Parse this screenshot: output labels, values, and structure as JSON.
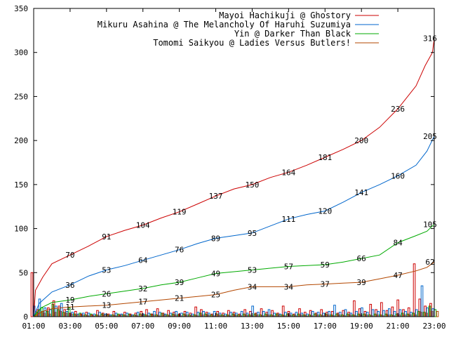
{
  "chart_data": {
    "type": "line",
    "title": "",
    "xlabel": "",
    "ylabel": "",
    "ylim": [
      0,
      350
    ],
    "xlim_hours": [
      1,
      23
    ],
    "yticks": [
      0,
      50,
      100,
      150,
      200,
      250,
      300,
      350
    ],
    "xtick_labels": [
      "01:00",
      "03:00",
      "05:00",
      "07:00",
      "09:00",
      "11:00",
      "13:00",
      "15:00",
      "17:00",
      "19:00",
      "21:00",
      "23:00"
    ],
    "legend_position": "top-right",
    "series": [
      {
        "name": "Mayoi Hachikuji @ Ghostory",
        "color": "#cc0000",
        "points": [
          [
            1,
            0
          ],
          [
            1.1,
            30
          ],
          [
            1.5,
            45
          ],
          [
            2,
            60
          ],
          [
            3,
            70
          ],
          [
            4,
            80
          ],
          [
            5,
            91
          ],
          [
            6,
            98
          ],
          [
            7,
            104
          ],
          [
            8,
            112
          ],
          [
            9,
            119
          ],
          [
            10,
            128
          ],
          [
            11,
            137
          ],
          [
            12,
            145
          ],
          [
            13,
            150
          ],
          [
            14,
            158
          ],
          [
            15,
            164
          ],
          [
            16,
            172
          ],
          [
            17,
            181
          ],
          [
            18,
            190
          ],
          [
            19,
            200
          ],
          [
            20,
            215
          ],
          [
            21,
            236
          ],
          [
            22,
            262
          ],
          [
            22.5,
            285
          ],
          [
            22.9,
            300
          ],
          [
            23,
            316
          ]
        ],
        "labels": [
          [
            3,
            70,
            "70"
          ],
          [
            5,
            91,
            "91"
          ],
          [
            7,
            104,
            "104"
          ],
          [
            9,
            119,
            "119"
          ],
          [
            11,
            137,
            "137"
          ],
          [
            13,
            150,
            "150"
          ],
          [
            15,
            164,
            "164"
          ],
          [
            17,
            181,
            "181"
          ],
          [
            19,
            200,
            "200"
          ],
          [
            21,
            236,
            "236"
          ],
          [
            23,
            316,
            "316"
          ]
        ]
      },
      {
        "name": "Mikuru Asahina @ The Melancholy Of Haruhi Suzumiya",
        "color": "#0066cc",
        "points": [
          [
            1,
            0
          ],
          [
            1.3,
            15
          ],
          [
            2,
            28
          ],
          [
            3,
            36
          ],
          [
            4,
            46
          ],
          [
            5,
            53
          ],
          [
            6,
            58
          ],
          [
            7,
            64
          ],
          [
            8,
            70
          ],
          [
            9,
            76
          ],
          [
            10,
            83
          ],
          [
            11,
            89
          ],
          [
            12,
            92
          ],
          [
            13,
            95
          ],
          [
            14,
            103
          ],
          [
            15,
            111
          ],
          [
            16,
            116
          ],
          [
            17,
            120
          ],
          [
            18,
            130
          ],
          [
            19,
            141
          ],
          [
            20,
            150
          ],
          [
            21,
            160
          ],
          [
            22,
            172
          ],
          [
            22.6,
            188
          ],
          [
            23,
            205
          ]
        ],
        "labels": [
          [
            3,
            36,
            "36"
          ],
          [
            5,
            53,
            "53"
          ],
          [
            7,
            64,
            "64"
          ],
          [
            9,
            76,
            "76"
          ],
          [
            11,
            89,
            "89"
          ],
          [
            13,
            95,
            "95"
          ],
          [
            15,
            111,
            "111"
          ],
          [
            17,
            120,
            "120"
          ],
          [
            19,
            141,
            "141"
          ],
          [
            21,
            160,
            "160"
          ],
          [
            23,
            205,
            "205"
          ]
        ]
      },
      {
        "name": "Yin @ Darker Than Black",
        "color": "#00aa00",
        "points": [
          [
            1,
            0
          ],
          [
            1.4,
            10
          ],
          [
            2,
            16
          ],
          [
            3,
            19
          ],
          [
            4,
            23
          ],
          [
            5,
            26
          ],
          [
            6,
            29
          ],
          [
            7,
            32
          ],
          [
            8,
            36
          ],
          [
            9,
            39
          ],
          [
            10,
            44
          ],
          [
            11,
            49
          ],
          [
            12,
            51
          ],
          [
            13,
            53
          ],
          [
            14,
            55
          ],
          [
            15,
            57
          ],
          [
            16,
            58
          ],
          [
            17,
            59
          ],
          [
            18,
            62
          ],
          [
            19,
            66
          ],
          [
            20,
            70
          ],
          [
            21,
            84
          ],
          [
            22,
            92
          ],
          [
            22.6,
            97
          ],
          [
            23,
            105
          ]
        ],
        "labels": [
          [
            3,
            19,
            "19"
          ],
          [
            5,
            26,
            "26"
          ],
          [
            7,
            32,
            "32"
          ],
          [
            9,
            39,
            "39"
          ],
          [
            11,
            49,
            "49"
          ],
          [
            13,
            53,
            "53"
          ],
          [
            15,
            57,
            "57"
          ],
          [
            17,
            59,
            "59"
          ],
          [
            19,
            66,
            "66"
          ],
          [
            21,
            84,
            "84"
          ],
          [
            23,
            105,
            "105"
          ]
        ]
      },
      {
        "name": "Tomomi Saikyou @ Ladies Versus Butlers!",
        "color": "#b34700",
        "points": [
          [
            1,
            0
          ],
          [
            1.5,
            6
          ],
          [
            2,
            9
          ],
          [
            3,
            11
          ],
          [
            4,
            12
          ],
          [
            5,
            13
          ],
          [
            6,
            15
          ],
          [
            7,
            17
          ],
          [
            8,
            19
          ],
          [
            9,
            21
          ],
          [
            10,
            23
          ],
          [
            11,
            25
          ],
          [
            12,
            30
          ],
          [
            13,
            34
          ],
          [
            14,
            34
          ],
          [
            15,
            34
          ],
          [
            16,
            36
          ],
          [
            17,
            37
          ],
          [
            18,
            38
          ],
          [
            19,
            39
          ],
          [
            20,
            43
          ],
          [
            21,
            47
          ],
          [
            22,
            52
          ],
          [
            22.6,
            56
          ],
          [
            23,
            62
          ]
        ],
        "labels": [
          [
            3,
            11,
            "11"
          ],
          [
            5,
            13,
            "13"
          ],
          [
            7,
            17,
            "17"
          ],
          [
            9,
            21,
            "21"
          ],
          [
            11,
            25,
            "25"
          ],
          [
            13,
            34,
            "34"
          ],
          [
            15,
            34,
            "34"
          ],
          [
            17,
            37,
            "37"
          ],
          [
            19,
            39,
            "39"
          ],
          [
            21,
            47,
            "47"
          ],
          [
            23,
            62,
            "62"
          ]
        ]
      }
    ],
    "bars": [
      {
        "x": 1.1,
        "values": [
          50,
          12,
          5,
          8
        ]
      },
      {
        "x": 1.4,
        "values": [
          8,
          20,
          10,
          4
        ]
      },
      {
        "x": 1.7,
        "values": [
          6,
          10,
          6,
          3
        ]
      },
      {
        "x": 2.0,
        "values": [
          10,
          8,
          14,
          5
        ]
      },
      {
        "x": 2.3,
        "values": [
          18,
          12,
          8,
          6
        ]
      },
      {
        "x": 2.6,
        "values": [
          12,
          15,
          5,
          4
        ]
      },
      {
        "x": 2.9,
        "values": [
          8,
          6,
          10,
          3
        ]
      },
      {
        "x": 3.2,
        "values": [
          4,
          5,
          3,
          2
        ]
      },
      {
        "x": 3.5,
        "values": [
          6,
          3,
          4,
          2
        ]
      },
      {
        "x": 3.8,
        "values": [
          3,
          4,
          2,
          1
        ]
      },
      {
        "x": 4.1,
        "values": [
          5,
          4,
          3,
          1
        ]
      },
      {
        "x": 4.4,
        "values": [
          2,
          3,
          2,
          1
        ]
      },
      {
        "x": 4.7,
        "values": [
          7,
          5,
          3,
          2
        ]
      },
      {
        "x": 5.0,
        "values": [
          4,
          3,
          2,
          1
        ]
      },
      {
        "x": 5.3,
        "values": [
          3,
          2,
          2,
          1
        ]
      },
      {
        "x": 5.6,
        "values": [
          6,
          4,
          3,
          2
        ]
      },
      {
        "x": 5.9,
        "values": [
          2,
          3,
          2,
          1
        ]
      },
      {
        "x": 6.2,
        "values": [
          5,
          4,
          3,
          2
        ]
      },
      {
        "x": 6.5,
        "values": [
          3,
          2,
          2,
          1
        ]
      },
      {
        "x": 6.8,
        "values": [
          4,
          5,
          3,
          2
        ]
      },
      {
        "x": 7.1,
        "values": [
          6,
          3,
          2,
          1
        ]
      },
      {
        "x": 7.4,
        "values": [
          8,
          4,
          3,
          2
        ]
      },
      {
        "x": 7.7,
        "values": [
          3,
          6,
          2,
          1
        ]
      },
      {
        "x": 8.0,
        "values": [
          9,
          5,
          4,
          2
        ]
      },
      {
        "x": 8.3,
        "values": [
          4,
          3,
          2,
          1
        ]
      },
      {
        "x": 8.6,
        "values": [
          7,
          4,
          3,
          2
        ]
      },
      {
        "x": 8.9,
        "values": [
          5,
          6,
          2,
          1
        ]
      },
      {
        "x": 9.2,
        "values": [
          3,
          4,
          3,
          2
        ]
      },
      {
        "x": 9.5,
        "values": [
          6,
          5,
          2,
          1
        ]
      },
      {
        "x": 9.8,
        "values": [
          4,
          3,
          2,
          1
        ]
      },
      {
        "x": 10.1,
        "values": [
          11,
          5,
          4,
          2
        ]
      },
      {
        "x": 10.4,
        "values": [
          8,
          6,
          3,
          2
        ]
      },
      {
        "x": 10.7,
        "values": [
          5,
          4,
          2,
          1
        ]
      },
      {
        "x": 11.0,
        "values": [
          3,
          6,
          3,
          2
        ]
      },
      {
        "x": 11.3,
        "values": [
          6,
          4,
          2,
          1
        ]
      },
      {
        "x": 11.6,
        "values": [
          4,
          3,
          2,
          1
        ]
      },
      {
        "x": 11.9,
        "values": [
          7,
          5,
          3,
          2
        ]
      },
      {
        "x": 12.2,
        "values": [
          5,
          4,
          2,
          1
        ]
      },
      {
        "x": 12.5,
        "values": [
          3,
          6,
          3,
          2
        ]
      },
      {
        "x": 12.8,
        "values": [
          8,
          4,
          2,
          1
        ]
      },
      {
        "x": 13.1,
        "values": [
          6,
          12,
          3,
          2
        ]
      },
      {
        "x": 13.4,
        "values": [
          4,
          5,
          2,
          1
        ]
      },
      {
        "x": 13.7,
        "values": [
          9,
          6,
          3,
          2
        ]
      },
      {
        "x": 14.0,
        "values": [
          5,
          8,
          2,
          1
        ]
      },
      {
        "x": 14.3,
        "values": [
          7,
          4,
          3,
          2
        ]
      },
      {
        "x": 14.6,
        "values": [
          4,
          3,
          2,
          1
        ]
      },
      {
        "x": 14.9,
        "values": [
          12,
          5,
          3,
          2
        ]
      },
      {
        "x": 15.2,
        "values": [
          6,
          4,
          2,
          1
        ]
      },
      {
        "x": 15.5,
        "values": [
          3,
          5,
          3,
          2
        ]
      },
      {
        "x": 15.8,
        "values": [
          9,
          4,
          2,
          1
        ]
      },
      {
        "x": 16.1,
        "values": [
          5,
          3,
          2,
          1
        ]
      },
      {
        "x": 16.4,
        "values": [
          7,
          6,
          3,
          2
        ]
      },
      {
        "x": 16.7,
        "values": [
          4,
          5,
          2,
          1
        ]
      },
      {
        "x": 17.0,
        "values": [
          8,
          4,
          3,
          2
        ]
      },
      {
        "x": 17.3,
        "values": [
          5,
          6,
          2,
          1
        ]
      },
      {
        "x": 17.6,
        "values": [
          6,
          13,
          3,
          2
        ]
      },
      {
        "x": 17.9,
        "values": [
          4,
          5,
          2,
          1
        ]
      },
      {
        "x": 18.2,
        "values": [
          7,
          8,
          3,
          2
        ]
      },
      {
        "x": 18.5,
        "values": [
          5,
          4,
          2,
          1
        ]
      },
      {
        "x": 18.8,
        "values": [
          18,
          6,
          3,
          2
        ]
      },
      {
        "x": 19.1,
        "values": [
          9,
          10,
          3,
          2
        ]
      },
      {
        "x": 19.4,
        "values": [
          6,
          5,
          2,
          1
        ]
      },
      {
        "x": 19.7,
        "values": [
          14,
          8,
          3,
          2
        ]
      },
      {
        "x": 20.0,
        "values": [
          8,
          6,
          2,
          1
        ]
      },
      {
        "x": 20.3,
        "values": [
          16,
          7,
          3,
          2
        ]
      },
      {
        "x": 20.6,
        "values": [
          7,
          9,
          2,
          1
        ]
      },
      {
        "x": 20.9,
        "values": [
          11,
          6,
          3,
          2
        ]
      },
      {
        "x": 21.2,
        "values": [
          19,
          8,
          4,
          2
        ]
      },
      {
        "x": 21.5,
        "values": [
          8,
          6,
          3,
          2
        ]
      },
      {
        "x": 21.8,
        "values": [
          10,
          5,
          4,
          2
        ]
      },
      {
        "x": 22.1,
        "values": [
          60,
          8,
          6,
          5
        ]
      },
      {
        "x": 22.4,
        "values": [
          20,
          35,
          5,
          4
        ]
      },
      {
        "x": 22.7,
        "values": [
          12,
          10,
          12,
          6
        ]
      },
      {
        "x": 23.0,
        "values": [
          15,
          9,
          8,
          6
        ]
      }
    ]
  }
}
